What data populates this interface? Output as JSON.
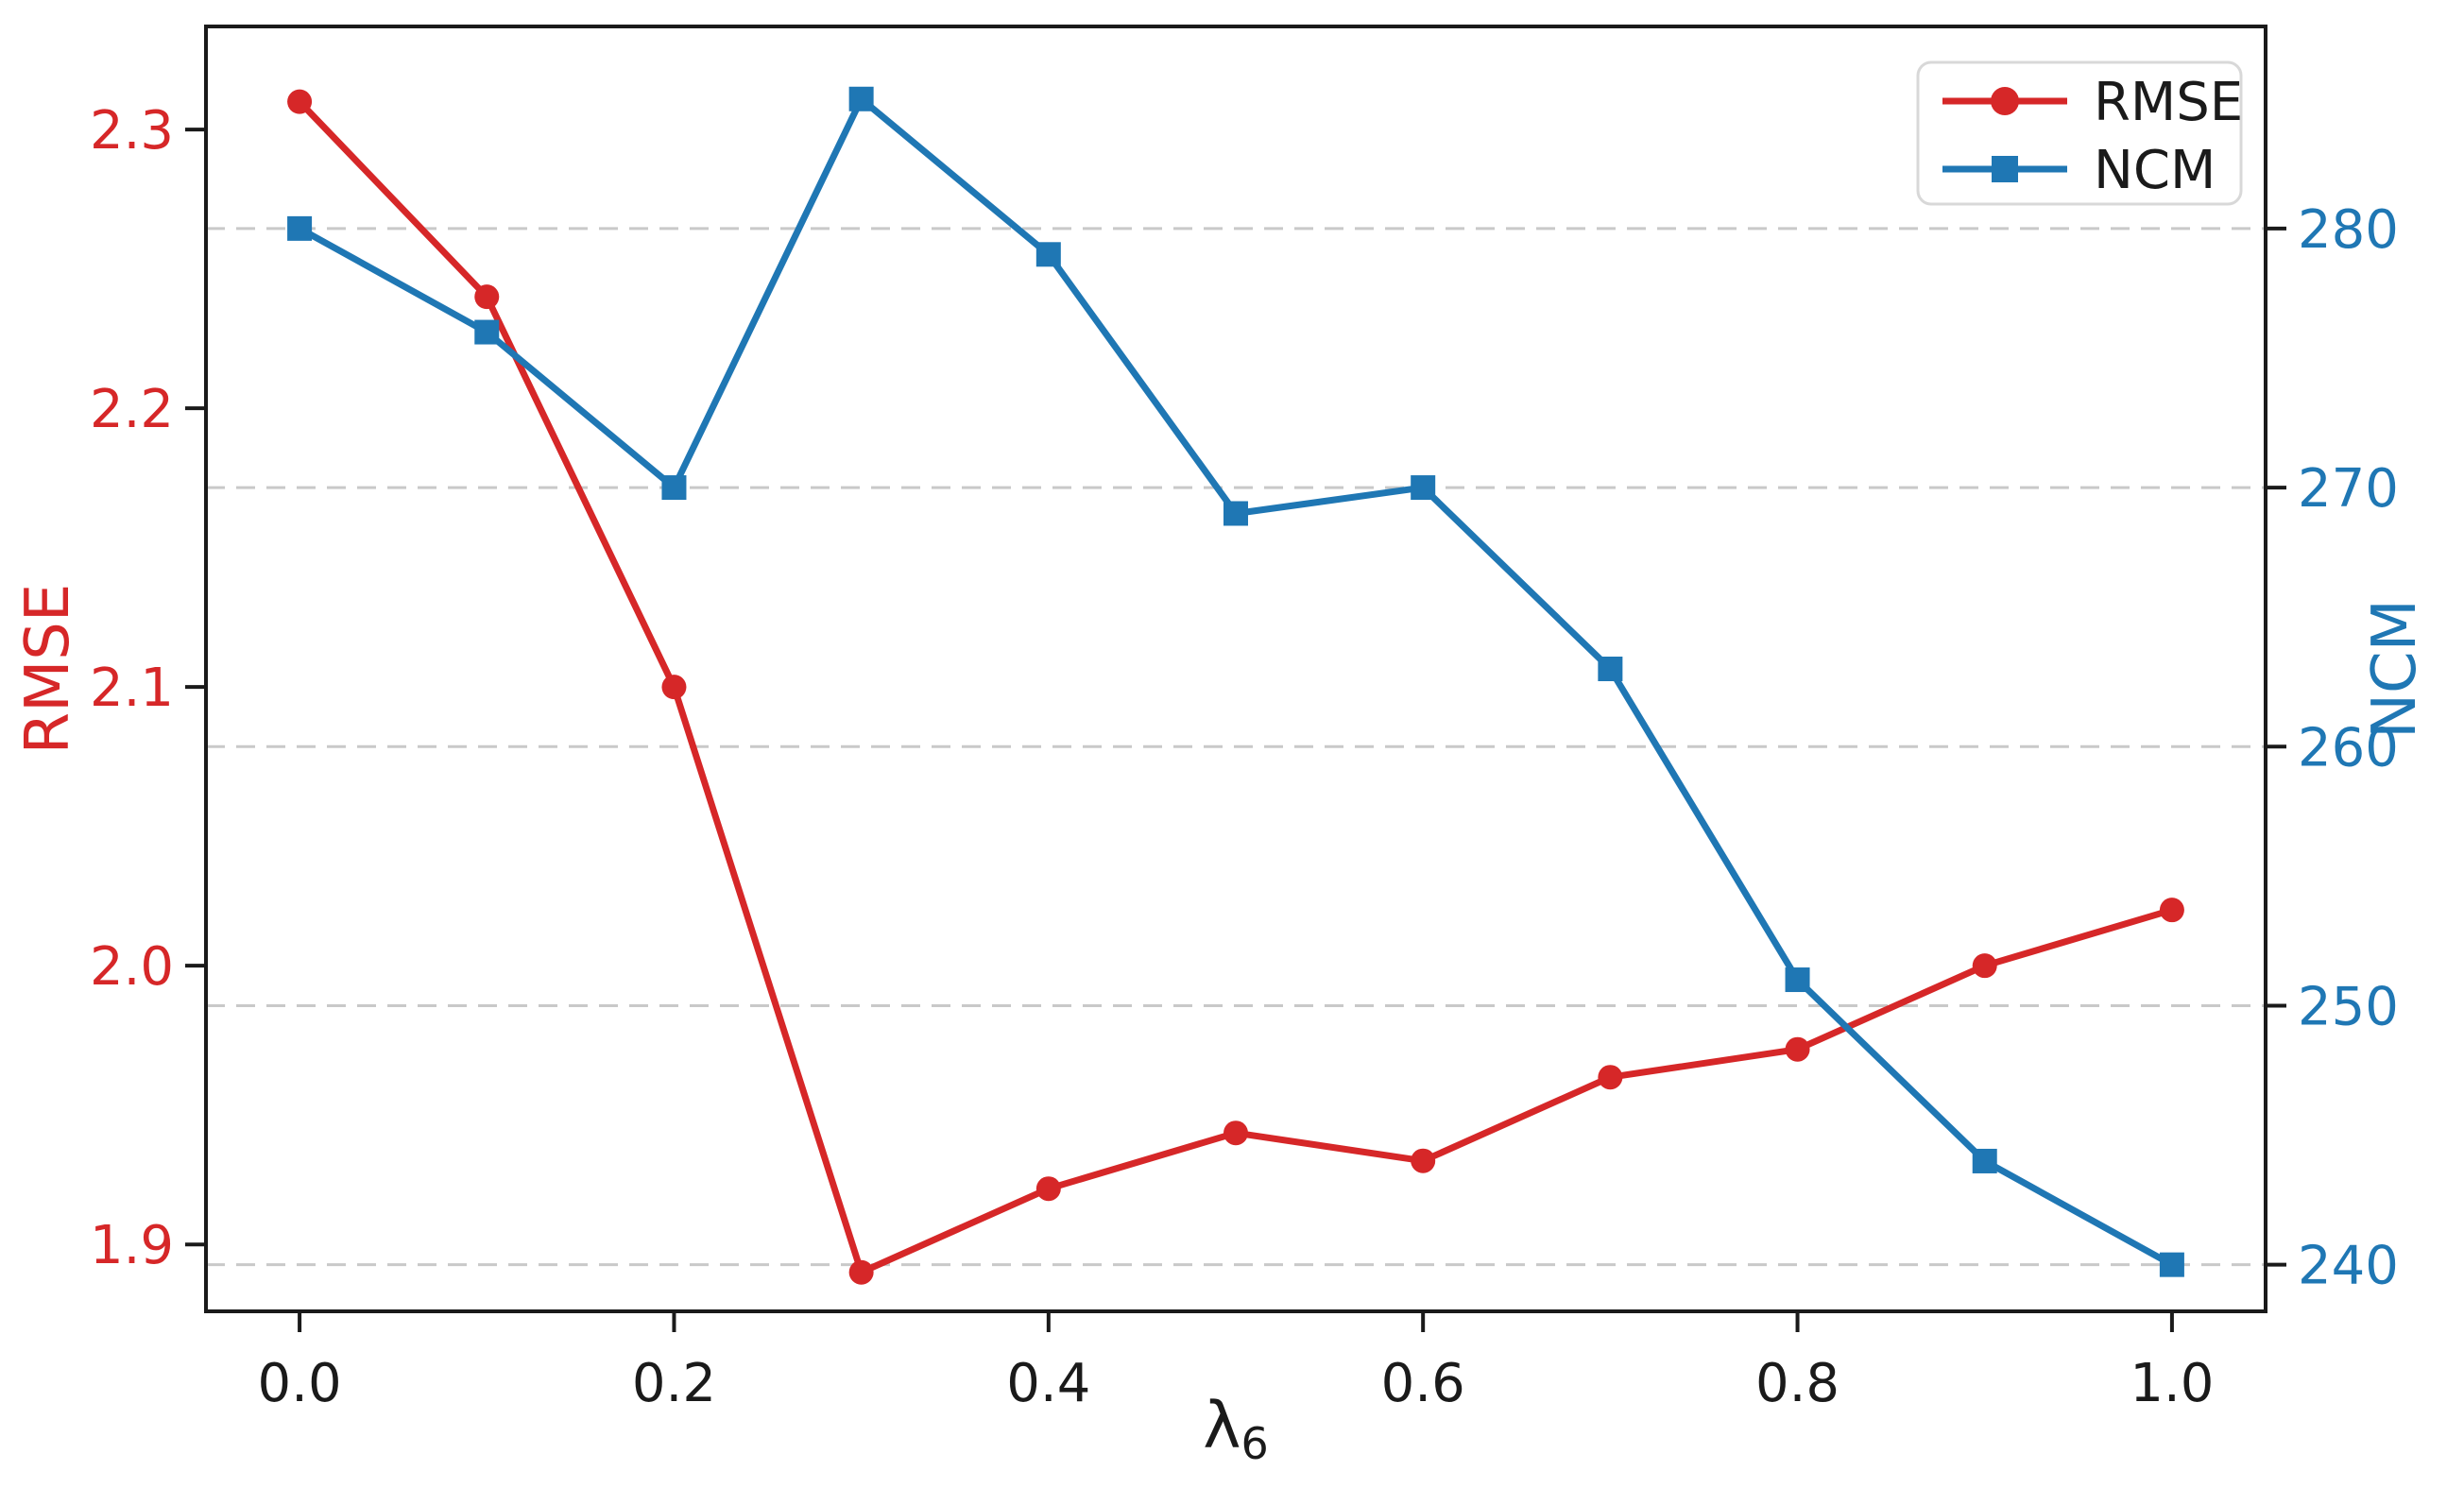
{
  "chart_data": {
    "type": "line",
    "title": "",
    "x": [
      0.0,
      0.1,
      0.2,
      0.3,
      0.4,
      0.5,
      0.6,
      0.7,
      0.8,
      0.9,
      1.0
    ],
    "series": [
      {
        "name": "RMSE",
        "axis": "left",
        "color": "#d62728",
        "marker": "circle",
        "values": [
          2.31,
          2.24,
          2.1,
          1.89,
          1.92,
          1.94,
          1.93,
          1.96,
          1.97,
          2.0,
          2.02
        ]
      },
      {
        "name": "NCM",
        "axis": "right",
        "color": "#1f77b4",
        "marker": "square",
        "values": [
          280,
          276,
          270,
          285,
          279,
          269,
          270,
          263,
          251,
          244,
          240
        ]
      }
    ],
    "xlabel_base": "λ",
    "xlabel_sub": "6",
    "xlim": [
      -0.05,
      1.05
    ],
    "x_ticks": [
      {
        "v": 0.0,
        "label": "0.0"
      },
      {
        "v": 0.2,
        "label": "0.2"
      },
      {
        "v": 0.4,
        "label": "0.4"
      },
      {
        "v": 0.6,
        "label": "0.6"
      },
      {
        "v": 0.8,
        "label": "0.8"
      },
      {
        "v": 1.0,
        "label": "1.0"
      }
    ],
    "left_axis": {
      "label": "RMSE",
      "color": "#d62728",
      "lim": [
        1.876,
        2.337
      ],
      "ticks": [
        {
          "v": 1.9,
          "label": "1.9"
        },
        {
          "v": 2.0,
          "label": "2.0"
        },
        {
          "v": 2.1,
          "label": "2.1"
        },
        {
          "v": 2.2,
          "label": "2.2"
        },
        {
          "v": 2.3,
          "label": "2.3"
        }
      ]
    },
    "right_axis": {
      "label": "NCM",
      "color": "#1f77b4",
      "lim": [
        238.2,
        287.8
      ],
      "ticks": [
        {
          "v": 240,
          "label": "240"
        },
        {
          "v": 250,
          "label": "250"
        },
        {
          "v": 260,
          "label": "260"
        },
        {
          "v": 270,
          "label": "270"
        },
        {
          "v": 280,
          "label": "280"
        }
      ]
    },
    "grid": {
      "on": true,
      "follows_axis": "right",
      "style": "dashed",
      "color": "#c9c9c9"
    },
    "legend": {
      "position": "top-right",
      "entries": [
        "RMSE",
        "NCM"
      ]
    },
    "spine_color": "#1a1a1a",
    "background": "#ffffff"
  }
}
